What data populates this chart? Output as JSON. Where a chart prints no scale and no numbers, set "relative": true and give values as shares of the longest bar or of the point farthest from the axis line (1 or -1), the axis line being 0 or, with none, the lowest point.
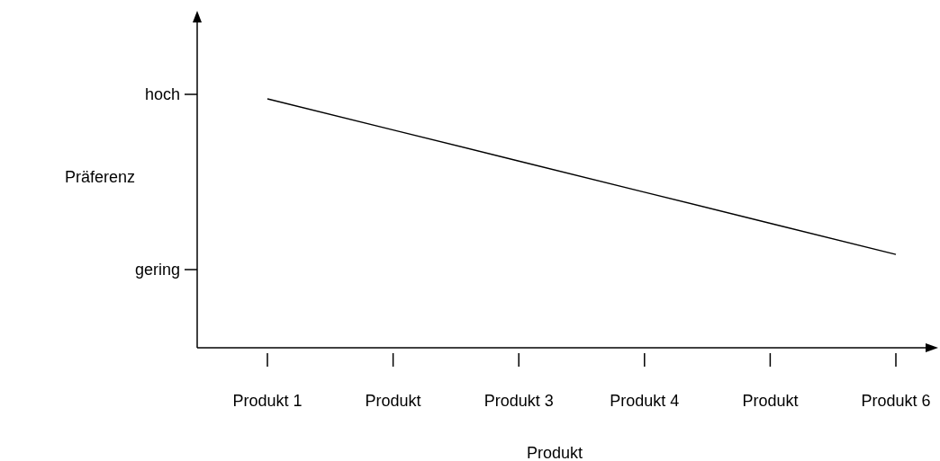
{
  "chart_data": {
    "type": "line",
    "xlabel": "Produkt",
    "ylabel": "Präferenz",
    "categories": [
      "Produkt 1",
      "Produkt",
      "Produkt 3",
      "Produkt 4",
      "Produkt",
      "Produkt 6"
    ],
    "values": [
      1,
      0.875,
      0.75,
      0.625,
      0.5,
      0.375
    ],
    "color": "#000000",
    "relative": true,
    "annotations": [
      "hoch",
      "gering"
    ],
    "marker": "none",
    "line_style": "solid"
  }
}
